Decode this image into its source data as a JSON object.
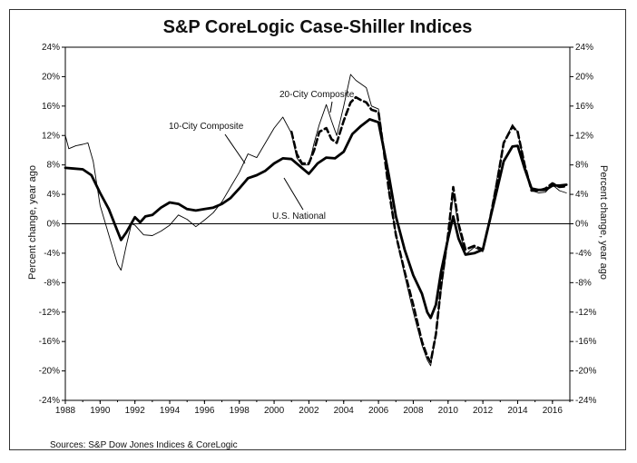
{
  "chart_data": {
    "type": "line",
    "title": "S&P CoreLogic Case-Shiller Indices",
    "source": "Sources: S&P Dow Jones Indices & CoreLogic",
    "ylabel_left": "Percent change, year ago",
    "ylabel_right": "Percent change, year ago",
    "xlim": [
      1988,
      2017
    ],
    "ylim": [
      -24,
      24
    ],
    "x_ticks": [
      "1988",
      "1990",
      "1992",
      "1994",
      "1996",
      "1998",
      "2000",
      "2002",
      "2004",
      "2006",
      "2008",
      "2010",
      "2012",
      "2014",
      "2016"
    ],
    "y_ticks": [
      "24%",
      "20%",
      "16%",
      "12%",
      "8%",
      "4%",
      "0%",
      "-4%",
      "-8%",
      "-12%",
      "-16%",
      "-20%",
      "-24%"
    ],
    "annotations": [
      "10-City Composite",
      "20-City Composite",
      "U.S. National"
    ],
    "series": [
      {
        "name": "U.S. National",
        "style": "thick-solid",
        "color": "#000000",
        "points": [
          [
            1988.0,
            7.6
          ],
          [
            1988.5,
            7.5
          ],
          [
            1989.0,
            7.4
          ],
          [
            1989.5,
            6.6
          ],
          [
            1990.0,
            4.2
          ],
          [
            1990.5,
            2.0
          ],
          [
            1991.0,
            -1.0
          ],
          [
            1991.2,
            -2.2
          ],
          [
            1991.5,
            -1.2
          ],
          [
            1992.0,
            0.9
          ],
          [
            1992.3,
            0.2
          ],
          [
            1992.6,
            1.0
          ],
          [
            1993.0,
            1.2
          ],
          [
            1993.5,
            2.2
          ],
          [
            1994.0,
            2.9
          ],
          [
            1994.5,
            2.7
          ],
          [
            1995.0,
            2.0
          ],
          [
            1995.5,
            1.8
          ],
          [
            1996.0,
            2.0
          ],
          [
            1996.5,
            2.2
          ],
          [
            1997.0,
            2.7
          ],
          [
            1997.5,
            3.5
          ],
          [
            1998.0,
            4.8
          ],
          [
            1998.5,
            6.2
          ],
          [
            1999.0,
            6.6
          ],
          [
            1999.5,
            7.2
          ],
          [
            2000.0,
            8.2
          ],
          [
            2000.5,
            8.9
          ],
          [
            2001.0,
            8.8
          ],
          [
            2001.5,
            7.8
          ],
          [
            2002.0,
            6.8
          ],
          [
            2002.5,
            8.2
          ],
          [
            2003.0,
            9.0
          ],
          [
            2003.5,
            8.9
          ],
          [
            2004.0,
            9.8
          ],
          [
            2004.5,
            12.2
          ],
          [
            2005.0,
            13.3
          ],
          [
            2005.5,
            14.2
          ],
          [
            2006.0,
            13.8
          ],
          [
            2006.3,
            10.2
          ],
          [
            2006.6,
            6.5
          ],
          [
            2007.0,
            1.0
          ],
          [
            2007.5,
            -3.5
          ],
          [
            2008.0,
            -7.0
          ],
          [
            2008.5,
            -9.5
          ],
          [
            2008.8,
            -12.0
          ],
          [
            2009.0,
            -12.8
          ],
          [
            2009.3,
            -11.0
          ],
          [
            2009.6,
            -6.5
          ],
          [
            2010.0,
            -2.0
          ],
          [
            2010.3,
            1.0
          ],
          [
            2010.6,
            -2.0
          ],
          [
            2011.0,
            -4.2
          ],
          [
            2011.5,
            -4.0
          ],
          [
            2012.0,
            -3.5
          ],
          [
            2012.4,
            0.5
          ],
          [
            2012.8,
            4.5
          ],
          [
            2013.2,
            8.5
          ],
          [
            2013.7,
            10.5
          ],
          [
            2014.0,
            10.6
          ],
          [
            2014.4,
            7.5
          ],
          [
            2014.8,
            4.8
          ],
          [
            2015.2,
            4.6
          ],
          [
            2015.6,
            4.6
          ],
          [
            2016.0,
            5.2
          ],
          [
            2016.4,
            5.2
          ],
          [
            2016.8,
            5.3
          ]
        ]
      },
      {
        "name": "10-City Composite",
        "style": "thin-solid",
        "color": "#000000",
        "points": [
          [
            1988.0,
            12.0
          ],
          [
            1988.2,
            10.2
          ],
          [
            1988.6,
            10.6
          ],
          [
            1989.0,
            10.8
          ],
          [
            1989.3,
            11.0
          ],
          [
            1989.6,
            8.5
          ],
          [
            1990.0,
            2.5
          ],
          [
            1990.5,
            -1.5
          ],
          [
            1991.0,
            -5.5
          ],
          [
            1991.2,
            -6.3
          ],
          [
            1991.5,
            -3.0
          ],
          [
            1991.8,
            0.0
          ],
          [
            1992.0,
            -0.2
          ],
          [
            1992.5,
            -1.5
          ],
          [
            1993.0,
            -1.6
          ],
          [
            1993.5,
            -1.0
          ],
          [
            1994.0,
            -0.2
          ],
          [
            1994.5,
            1.2
          ],
          [
            1995.0,
            0.6
          ],
          [
            1995.5,
            -0.4
          ],
          [
            1996.0,
            0.5
          ],
          [
            1996.5,
            1.5
          ],
          [
            1997.0,
            3.0
          ],
          [
            1997.5,
            5.0
          ],
          [
            1998.0,
            7.0
          ],
          [
            1998.5,
            9.5
          ],
          [
            1999.0,
            9.0
          ],
          [
            1999.5,
            11.0
          ],
          [
            2000.0,
            13.0
          ],
          [
            2000.5,
            14.5
          ],
          [
            2001.0,
            12.3
          ],
          [
            2001.3,
            9.0
          ],
          [
            2001.6,
            8.0
          ],
          [
            2002.0,
            8.0
          ],
          [
            2002.3,
            11.0
          ],
          [
            2002.6,
            13.5
          ],
          [
            2003.0,
            16.2
          ],
          [
            2003.3,
            14.0
          ],
          [
            2003.6,
            12.0
          ],
          [
            2004.0,
            16.0
          ],
          [
            2004.4,
            20.3
          ],
          [
            2004.7,
            19.5
          ],
          [
            2005.0,
            19.0
          ],
          [
            2005.3,
            18.5
          ],
          [
            2005.6,
            16.0
          ],
          [
            2006.0,
            15.6
          ],
          [
            2006.3,
            10.5
          ],
          [
            2006.6,
            4.5
          ],
          [
            2007.0,
            -1.5
          ],
          [
            2007.5,
            -7.0
          ],
          [
            2008.0,
            -12.0
          ],
          [
            2008.5,
            -16.5
          ],
          [
            2008.8,
            -18.5
          ],
          [
            2009.0,
            -19.3
          ],
          [
            2009.3,
            -15.0
          ],
          [
            2009.6,
            -9.0
          ],
          [
            2010.0,
            -2.0
          ],
          [
            2010.3,
            4.0
          ],
          [
            2010.6,
            -0.5
          ],
          [
            2011.0,
            -4.2
          ],
          [
            2011.5,
            -3.2
          ],
          [
            2012.0,
            -3.8
          ],
          [
            2012.4,
            0.5
          ],
          [
            2012.8,
            6.0
          ],
          [
            2013.2,
            11.0
          ],
          [
            2013.7,
            13.5
          ],
          [
            2014.0,
            12.5
          ],
          [
            2014.4,
            8.0
          ],
          [
            2014.8,
            4.5
          ],
          [
            2015.2,
            4.2
          ],
          [
            2015.6,
            4.3
          ],
          [
            2016.0,
            5.3
          ],
          [
            2016.4,
            4.5
          ],
          [
            2016.8,
            4.2
          ]
        ]
      },
      {
        "name": "20-City Composite",
        "style": "dashed",
        "color": "#000000",
        "points": [
          [
            2001.0,
            12.5
          ],
          [
            2001.3,
            9.5
          ],
          [
            2001.6,
            8.2
          ],
          [
            2002.0,
            8.2
          ],
          [
            2002.3,
            10.0
          ],
          [
            2002.6,
            12.5
          ],
          [
            2003.0,
            13.0
          ],
          [
            2003.3,
            11.5
          ],
          [
            2003.6,
            11.0
          ],
          [
            2004.0,
            14.0
          ],
          [
            2004.4,
            16.5
          ],
          [
            2004.7,
            17.2
          ],
          [
            2005.0,
            16.8
          ],
          [
            2005.3,
            16.5
          ],
          [
            2005.6,
            15.5
          ],
          [
            2006.0,
            15.2
          ],
          [
            2006.3,
            10.0
          ],
          [
            2006.6,
            4.5
          ],
          [
            2007.0,
            -1.5
          ],
          [
            2007.5,
            -6.5
          ],
          [
            2008.0,
            -11.0
          ],
          [
            2008.5,
            -16.0
          ],
          [
            2008.8,
            -18.0
          ],
          [
            2009.0,
            -18.8
          ],
          [
            2009.3,
            -15.0
          ],
          [
            2009.6,
            -8.5
          ],
          [
            2010.0,
            -1.5
          ],
          [
            2010.3,
            5.0
          ],
          [
            2010.6,
            0.0
          ],
          [
            2011.0,
            -3.5
          ],
          [
            2011.5,
            -3.0
          ],
          [
            2012.0,
            -3.5
          ],
          [
            2012.4,
            0.5
          ],
          [
            2012.8,
            5.5
          ],
          [
            2013.2,
            11.0
          ],
          [
            2013.7,
            13.2
          ],
          [
            2014.0,
            12.5
          ],
          [
            2014.4,
            8.0
          ],
          [
            2014.8,
            4.5
          ],
          [
            2015.2,
            4.5
          ],
          [
            2015.6,
            4.8
          ],
          [
            2016.0,
            5.5
          ],
          [
            2016.4,
            5.0
          ],
          [
            2016.8,
            5.1
          ]
        ]
      }
    ]
  }
}
